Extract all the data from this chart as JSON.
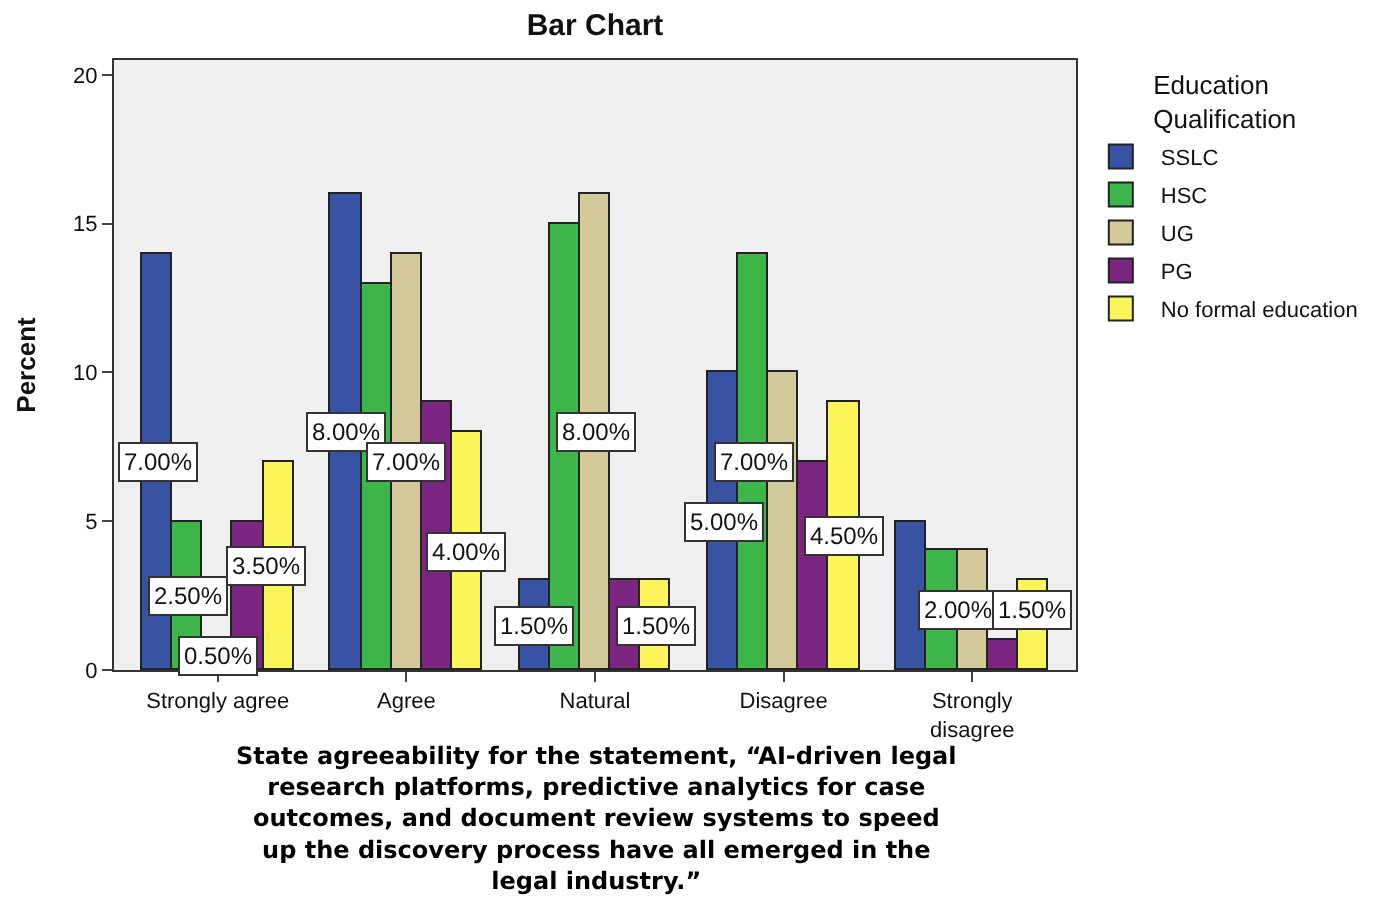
{
  "chart_data": {
    "type": "bar",
    "title": "Bar Chart",
    "xlabel": "State agreeability for the statement, “AI-driven legal\nresearch platforms, predictive analytics for case\noutcomes, and document review systems to speed\nup the discovery process have all emerged in the\nlegal industry.”",
    "ylabel": "Percent",
    "legend_title": "Education\nQualification",
    "legend": "top right",
    "categories": [
      "Strongly agree",
      "Agree",
      "Natural",
      "Disagree",
      "Strongly\ndisagree"
    ],
    "ylim": [
      0,
      20.5
    ],
    "yticks": [
      0,
      5,
      10,
      15,
      20
    ],
    "grid": false,
    "series": [
      {
        "name": "SSLC",
        "color": "#3953a4",
        "values": [
          14,
          16,
          3,
          10,
          5
        ]
      },
      {
        "name": "HSC",
        "color": "#3cb54a",
        "values": [
          5,
          13,
          15,
          14,
          4
        ]
      },
      {
        "name": "UG",
        "color": "#d3c99b",
        "values": [
          null,
          14,
          16,
          10,
          4
        ]
      },
      {
        "name": "PG",
        "color": "#7b2580",
        "values": [
          5,
          9,
          3,
          7,
          1
        ]
      },
      {
        "name": "No formal education",
        "color": "#fbf55a",
        "values": [
          7,
          8,
          3,
          9,
          3
        ]
      }
    ],
    "annotations": [
      "7.00%",
      "2.50%",
      "0.50%",
      "3.50%",
      "8.00%",
      "7.00%",
      "4.00%",
      "1.50%",
      "8.00%",
      "1.50%",
      "5.00%",
      "7.00%",
      "4.50%",
      "2.00%",
      "1.50%"
    ]
  }
}
